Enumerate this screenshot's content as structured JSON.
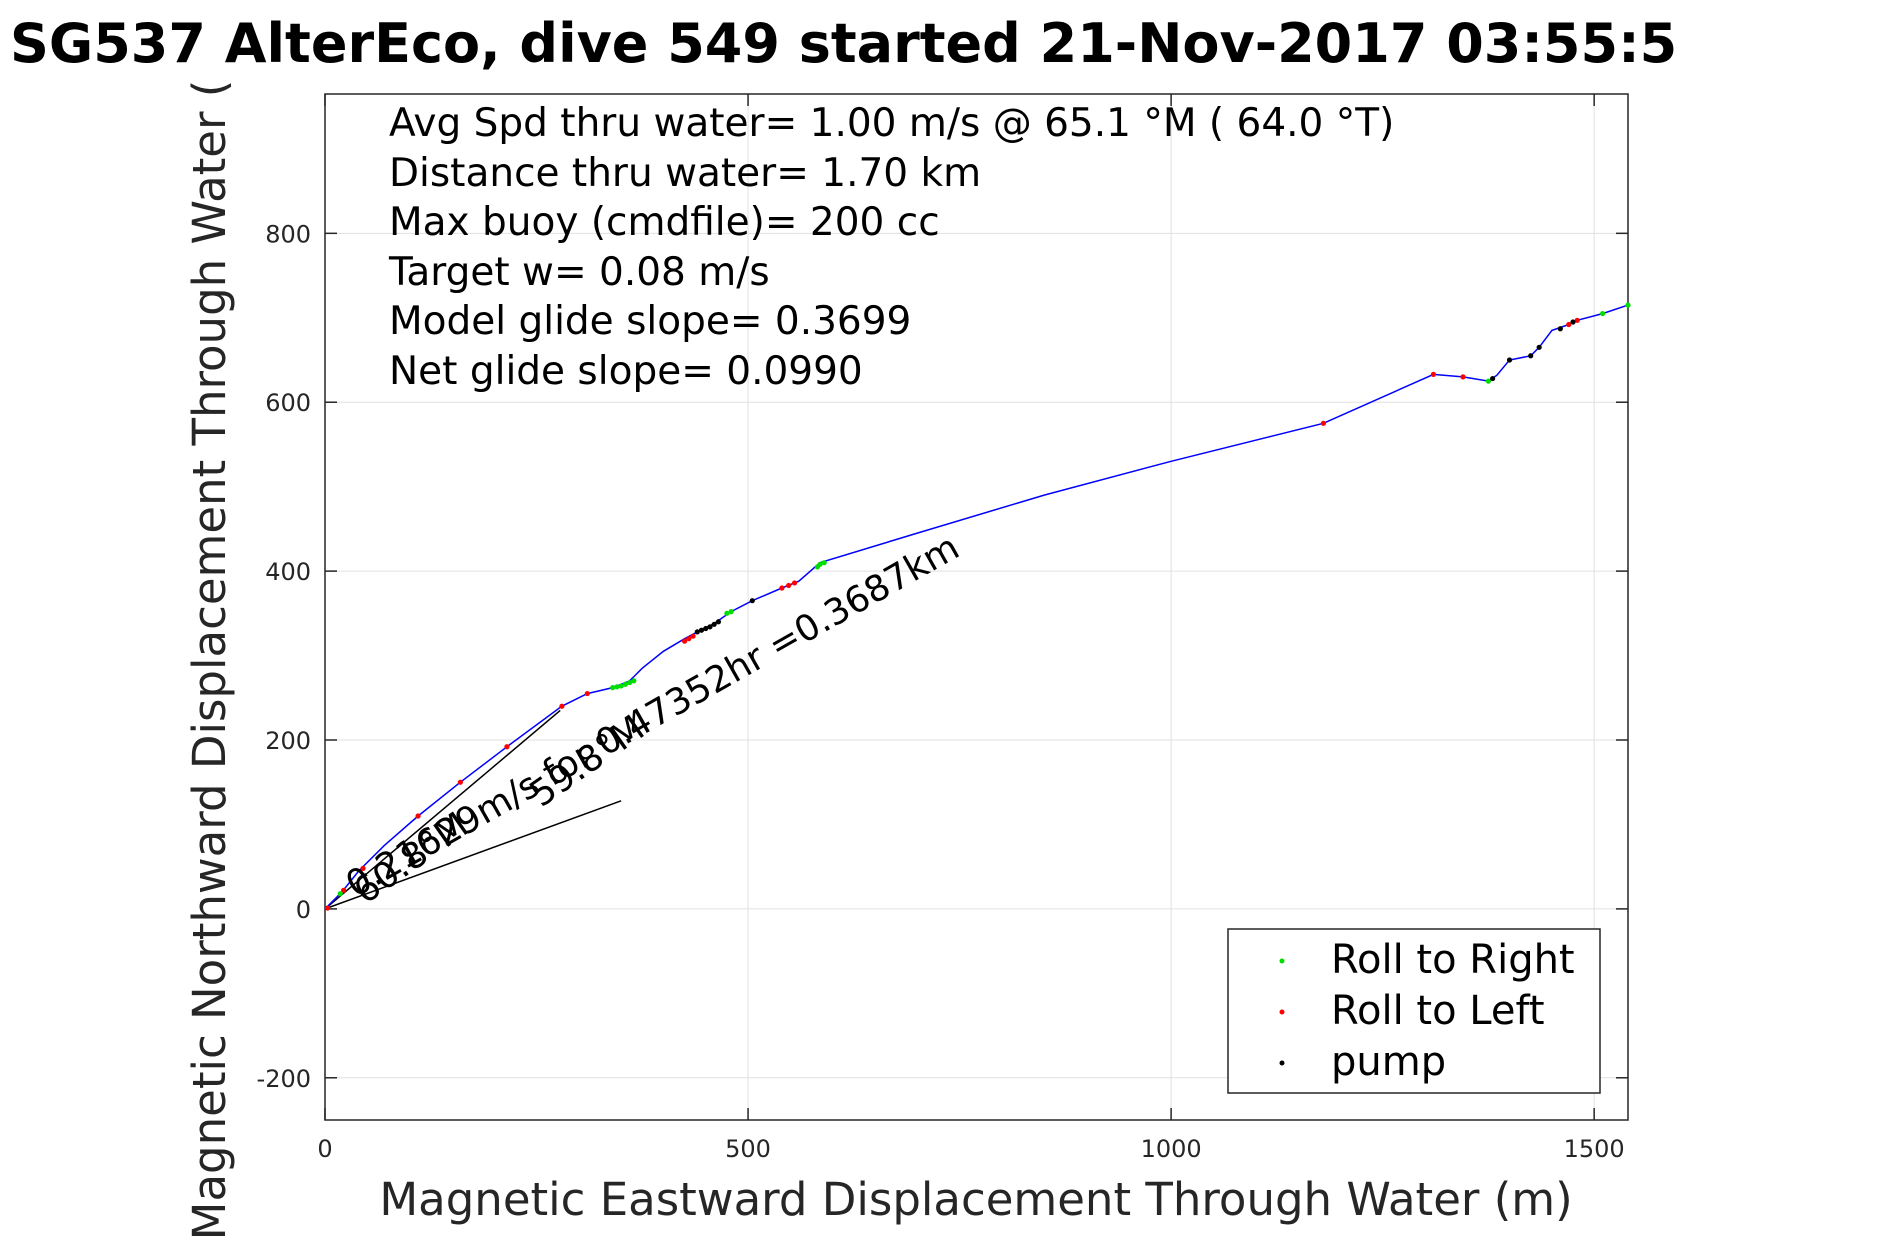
{
  "chart_data": {
    "type": "line",
    "title": "SG537 AlterEco, dive 549 started 21-Nov-2017 03:55:5",
    "xlabel": "Magnetic Eastward Displacement Through Water (m)",
    "ylabel": "Magnetic Northward Displacement Through Water (",
    "xlim": [
      0,
      1540
    ],
    "ylim": [
      -250,
      965
    ],
    "xticks": [
      0,
      500,
      1000,
      1500
    ],
    "yticks": [
      -200,
      0,
      200,
      400,
      600,
      800
    ],
    "grid": true,
    "colors": {
      "track": "#0000ff",
      "roll_right": "#00dd00",
      "roll_left": "#ff0000",
      "pump": "#000000",
      "current": "#000000"
    },
    "info_lines": [
      "Avg Spd thru water=  1.00 m/s @  65.1 °M ( 64.0 °T)",
      "Distance thru water=  1.70 km",
      "Max buoy (cmdfile)= 200 cc",
      "Target w= 0.08 m/s",
      "Model glide slope= 0.3699",
      "Net glide slope= 0.0990"
    ],
    "annotations": [
      {
        "text": "0.21629m/s for 0.47352hr =0.3687km"
      },
      {
        "text": "59.8°M"
      },
      {
        "text": "60.8°M"
      }
    ],
    "track": {
      "name": "glider track",
      "x": [
        0,
        20,
        40,
        70,
        110,
        160,
        215,
        280,
        310,
        340,
        360,
        375,
        400,
        425,
        440,
        460,
        480,
        505,
        540,
        560,
        585,
        700,
        850,
        1000,
        1180,
        1310,
        1345,
        1375,
        1385,
        1400,
        1425,
        1435,
        1450,
        1470,
        1480,
        1510,
        1540
      ],
      "y": [
        0,
        20,
        45,
        75,
        110,
        150,
        192,
        240,
        255,
        262,
        270,
        285,
        305,
        320,
        328,
        338,
        352,
        365,
        380,
        388,
        410,
        445,
        490,
        530,
        575,
        633,
        630,
        625,
        632,
        650,
        655,
        665,
        685,
        692,
        697,
        705,
        715
      ]
    },
    "current_arrow": {
      "name": "surface current",
      "x": [
        0,
        278
      ],
      "y": [
        0,
        235
      ]
    },
    "heading_line": {
      "name": "heading",
      "x": [
        0,
        350
      ],
      "y": [
        0,
        128
      ]
    },
    "markers": {
      "roll_right": {
        "x": [
          18,
          340,
          345,
          350,
          355,
          360,
          365,
          475,
          480,
          582,
          585,
          590,
          1375,
          1510,
          1540
        ],
        "y": [
          18,
          262,
          263,
          264,
          266,
          268,
          270,
          350,
          352,
          405,
          408,
          410,
          625,
          705,
          715
        ]
      },
      "roll_left": {
        "x": [
          3,
          22,
          45,
          110,
          160,
          215,
          280,
          310,
          425,
          430,
          435,
          540,
          548,
          555,
          1180,
          1310,
          1345,
          1470,
          1480
        ],
        "y": [
          1,
          22,
          48,
          110,
          150,
          192,
          240,
          255,
          317,
          320,
          323,
          380,
          383,
          386,
          575,
          633,
          630,
          692,
          697
        ]
      },
      "pump": {
        "x": [
          440,
          445,
          450,
          455,
          460,
          465,
          505,
          1380,
          1400,
          1425,
          1435,
          1460,
          1475
        ],
        "y": [
          328,
          330,
          332,
          334,
          337,
          340,
          365,
          628,
          650,
          655,
          665,
          687,
          695
        ]
      }
    },
    "legend": {
      "placement": "bottom-right",
      "entries": [
        {
          "key": "roll_right",
          "label": "Roll to Right"
        },
        {
          "key": "roll_left",
          "label": "Roll to Left"
        },
        {
          "key": "pump",
          "label": "pump"
        }
      ]
    }
  }
}
